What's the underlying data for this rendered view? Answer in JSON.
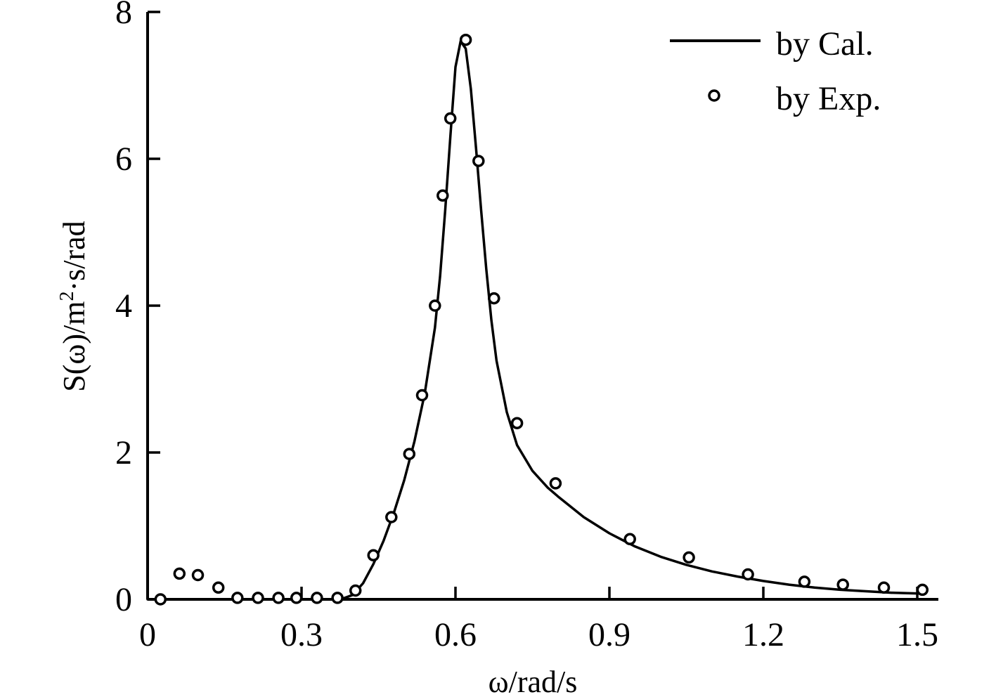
{
  "colors": {
    "ink": "#000000",
    "background": "#ffffff"
  },
  "chart_data": {
    "type": "line",
    "title": "",
    "xlabel": "ω/rad/s",
    "ylabel_main": "S(ω)/m",
    "ylabel_sup": "2",
    "ylabel_rest": "·s/rad",
    "xlim": [
      0,
      1.5
    ],
    "ylim": [
      0,
      8
    ],
    "xticks": [
      0,
      0.3,
      0.6,
      0.9,
      1.2,
      1.5
    ],
    "xtick_labels": [
      "0",
      "0.3",
      "0.6",
      "0.9",
      "1.2",
      "1.5"
    ],
    "yticks": [
      0,
      2,
      4,
      6,
      8
    ],
    "ytick_labels": [
      "0",
      "2",
      "4",
      "6",
      "8"
    ],
    "grid": false,
    "legend_position": "top-right",
    "series": [
      {
        "name": "by Cal.",
        "kind": "line",
        "x": [
          0.0,
          0.1,
          0.2,
          0.3,
          0.35,
          0.38,
          0.4,
          0.42,
          0.44,
          0.46,
          0.48,
          0.5,
          0.52,
          0.54,
          0.56,
          0.57,
          0.58,
          0.59,
          0.6,
          0.61,
          0.62,
          0.63,
          0.64,
          0.65,
          0.66,
          0.67,
          0.68,
          0.7,
          0.72,
          0.75,
          0.78,
          0.8,
          0.85,
          0.9,
          0.95,
          1.0,
          1.05,
          1.1,
          1.15,
          1.2,
          1.25,
          1.3,
          1.35,
          1.4,
          1.45,
          1.5
        ],
        "y": [
          0.0,
          0.0,
          0.0,
          0.0,
          0.0,
          0.01,
          0.06,
          0.22,
          0.48,
          0.8,
          1.18,
          1.62,
          2.15,
          2.8,
          3.7,
          4.4,
          5.3,
          6.3,
          7.25,
          7.6,
          7.5,
          6.95,
          6.15,
          5.3,
          4.5,
          3.8,
          3.25,
          2.55,
          2.1,
          1.75,
          1.52,
          1.4,
          1.12,
          0.9,
          0.72,
          0.58,
          0.47,
          0.38,
          0.31,
          0.25,
          0.2,
          0.16,
          0.13,
          0.11,
          0.09,
          0.08
        ]
      },
      {
        "name": "by Exp.",
        "kind": "scatter",
        "x": [
          0.025,
          0.062,
          0.098,
          0.138,
          0.175,
          0.215,
          0.255,
          0.29,
          0.33,
          0.37,
          0.405,
          0.44,
          0.475,
          0.51,
          0.535,
          0.56,
          0.575,
          0.59,
          0.62,
          0.645,
          0.675,
          0.72,
          0.795,
          0.94,
          1.055,
          1.17,
          1.28,
          1.355,
          1.435,
          1.51
        ],
        "y": [
          0.0,
          0.35,
          0.33,
          0.16,
          0.02,
          0.02,
          0.02,
          0.02,
          0.02,
          0.02,
          0.12,
          0.6,
          1.12,
          1.98,
          2.78,
          4.0,
          5.5,
          6.55,
          7.62,
          5.97,
          4.1,
          2.4,
          1.58,
          0.82,
          0.57,
          0.34,
          0.24,
          0.2,
          0.16,
          0.13
        ]
      }
    ]
  }
}
